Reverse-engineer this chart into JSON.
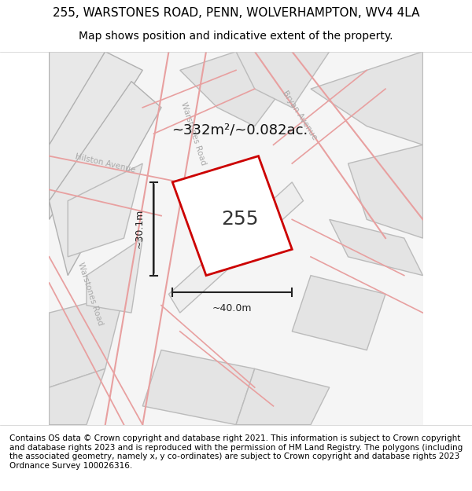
{
  "title_line1": "255, WARSTONES ROAD, PENN, WOLVERHAMPTON, WV4 4LA",
  "title_line2": "Map shows position and indicative extent of the property.",
  "footer_text": "Contains OS data © Crown copyright and database right 2021. This information is subject to Crown copyright and database rights 2023 and is reproduced with the permission of HM Land Registry. The polygons (including the associated geometry, namely x, y co-ordinates) are subject to Crown copyright and database rights 2023 Ordnance Survey 100026316.",
  "area_label": "~332m²/~0.082ac.",
  "plot_number": "255",
  "dim_width": "~40.0m",
  "dim_height": "~30.1m",
  "bg_color": "#f5f5f5",
  "map_bg": "#f0f0f0",
  "road_fill": "#e8e8e8",
  "road_stroke": "#cccccc",
  "road_line_color": "#f0b0b0",
  "plot_stroke": "#cc0000",
  "plot_fill": "#ffffff",
  "dim_color": "#222222",
  "road_label_color": "#999999",
  "title_fontsize": 11,
  "subtitle_fontsize": 10,
  "footer_fontsize": 7.5,
  "map_xlim": [
    0,
    1
  ],
  "map_ylim": [
    0,
    1
  ]
}
